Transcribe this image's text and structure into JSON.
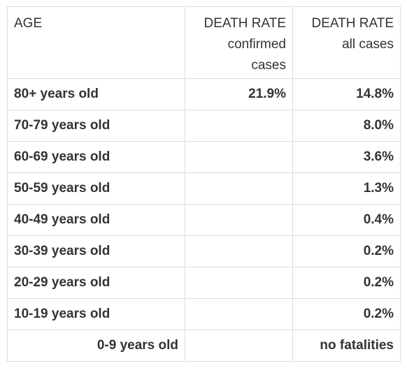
{
  "table": {
    "headers": {
      "age": "AGE",
      "confirmed": [
        "DEATH RATE",
        "confirmed",
        "cases"
      ],
      "all": [
        "DEATH RATE",
        "all cases"
      ]
    },
    "rows": [
      {
        "age": "80+ years old",
        "confirmed": "21.9%",
        "all": "14.8%"
      },
      {
        "age": "70-79 years old",
        "confirmed": "",
        "all": "8.0%"
      },
      {
        "age": "60-69 years old",
        "confirmed": "",
        "all": "3.6%"
      },
      {
        "age": "50-59 years old",
        "confirmed": "",
        "all": "1.3%"
      },
      {
        "age": "40-49 years old",
        "confirmed": "",
        "all": "0.4%"
      },
      {
        "age": "30-39 years old",
        "confirmed": "",
        "all": "0.2%"
      },
      {
        "age": "20-29 years old",
        "confirmed": "",
        "all": "0.2%"
      },
      {
        "age": "10-19 years old",
        "confirmed": "",
        "all": "0.2%"
      },
      {
        "age": "0-9 years old",
        "confirmed": "",
        "all": "no fatalities",
        "age_align": "right"
      }
    ]
  }
}
